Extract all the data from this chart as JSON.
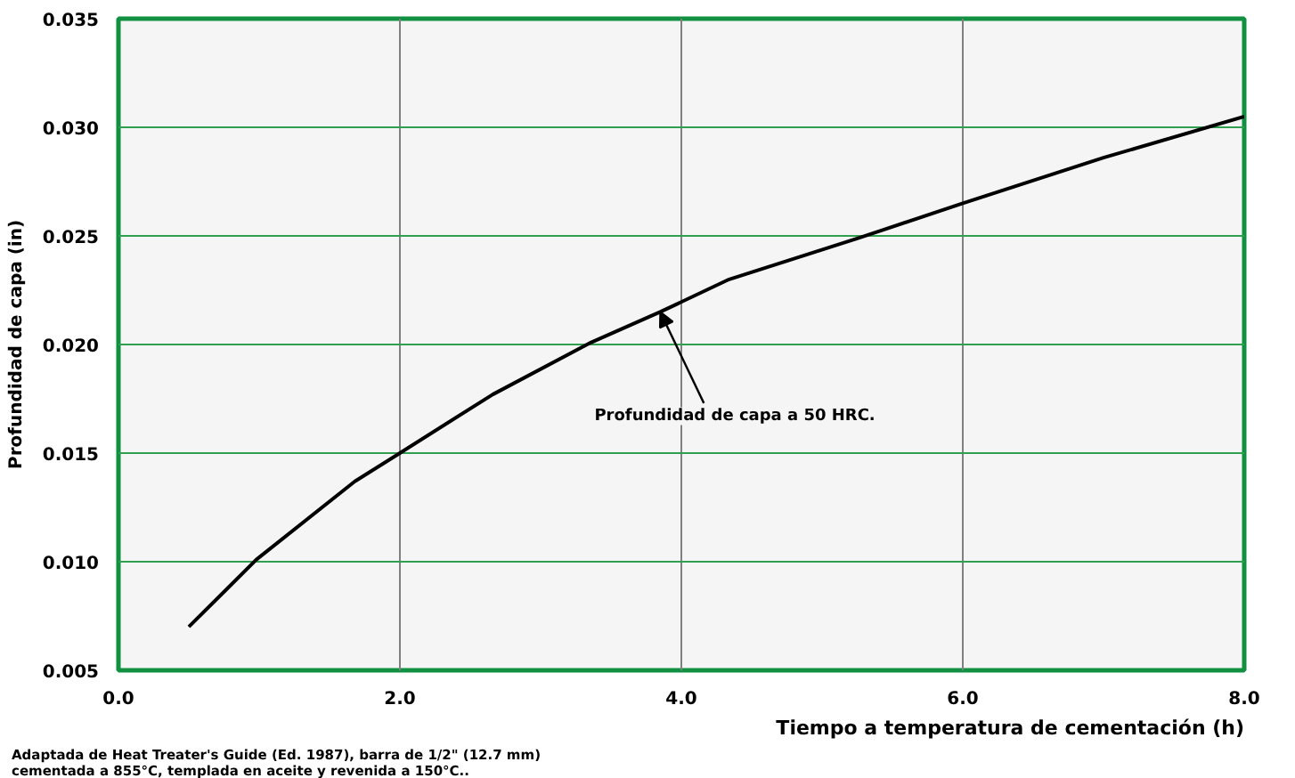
{
  "chart_data": {
    "type": "line",
    "xlabel": "Tiempo a temperatura de cementación (h)",
    "ylabel": "Profundidad de capa (in)",
    "x": [
      0.5,
      0.98,
      1.68,
      2.0,
      2.66,
      3.36,
      3.85,
      4.34,
      5.26,
      6.0,
      7.0,
      8.0
    ],
    "series": [
      {
        "color": "#000000",
        "values": [
          0.007,
          0.0101,
          0.0137,
          0.015,
          0.0177,
          0.0201,
          0.0215,
          0.023,
          0.0249,
          0.0265,
          0.0286,
          0.0305
        ]
      }
    ],
    "xlim": [
      0,
      8
    ],
    "ylim": [
      0.005,
      0.035
    ],
    "xticks": [
      {
        "value": 0,
        "label": "0.0"
      },
      {
        "value": 2,
        "label": "2.0"
      },
      {
        "value": 4,
        "label": "4.0"
      },
      {
        "value": 6,
        "label": "6.0"
      },
      {
        "value": 8,
        "label": "8.0"
      }
    ],
    "yticks": [
      0.005,
      {
        "value": 0.01,
        "label": "0.010"
      },
      0.015,
      {
        "value": 0.02,
        "label": "0.020"
      },
      0.025,
      {
        "value": 0.03,
        "label": "0.030"
      },
      0.035
    ],
    "grid": true,
    "marker": "none",
    "line_style": "solid",
    "annotations": [
      {
        "text": "Profundidad de capa a 50 HRC.",
        "x": 3.85,
        "y": 0.0215
      },
      "Adaptada de Heat Treater's Guide (Ed. 1987), barra de 1/2\" (12.7 mm)\ncementada a 855°C, templada en aceite y revenida a 150°C.."
    ]
  }
}
